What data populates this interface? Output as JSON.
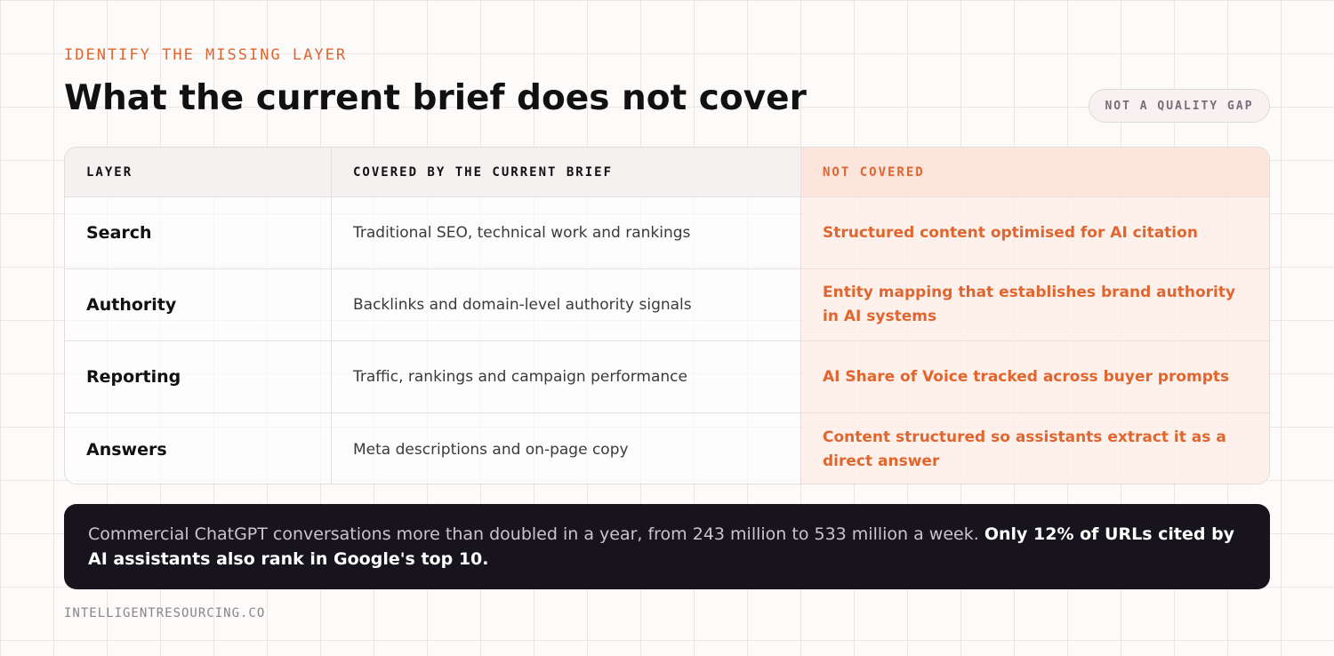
{
  "header": {
    "eyebrow": "IDENTIFY THE MISSING LAYER",
    "title": "What the current brief does not cover",
    "badge": "NOT A QUALITY GAP"
  },
  "table": {
    "columns": [
      "LAYER",
      "COVERED BY THE CURRENT BRIEF",
      "NOT COVERED"
    ],
    "rows": [
      [
        "Search",
        "Traditional SEO, technical work and rankings",
        "Structured content optimised for AI citation"
      ],
      [
        "Authority",
        "Backlinks and domain-level authority signals",
        "Entity mapping that establishes brand authority in AI systems"
      ],
      [
        "Reporting",
        "Traffic, rankings and campaign performance",
        "AI Share of Voice tracked across buyer prompts"
      ],
      [
        "Answers",
        "Meta descriptions and on-page copy",
        "Content structured so assistants extract it as a direct answer"
      ]
    ]
  },
  "callout": {
    "text": "Commercial ChatGPT conversations more than doubled in a year, from 243 million to 533 million a week.",
    "emphasis": "Only 12% of URLs cited by AI assistants also rank in Google's top 10."
  },
  "footer": {
    "site": "INTELLIGENTRESOURCING.CO"
  }
}
